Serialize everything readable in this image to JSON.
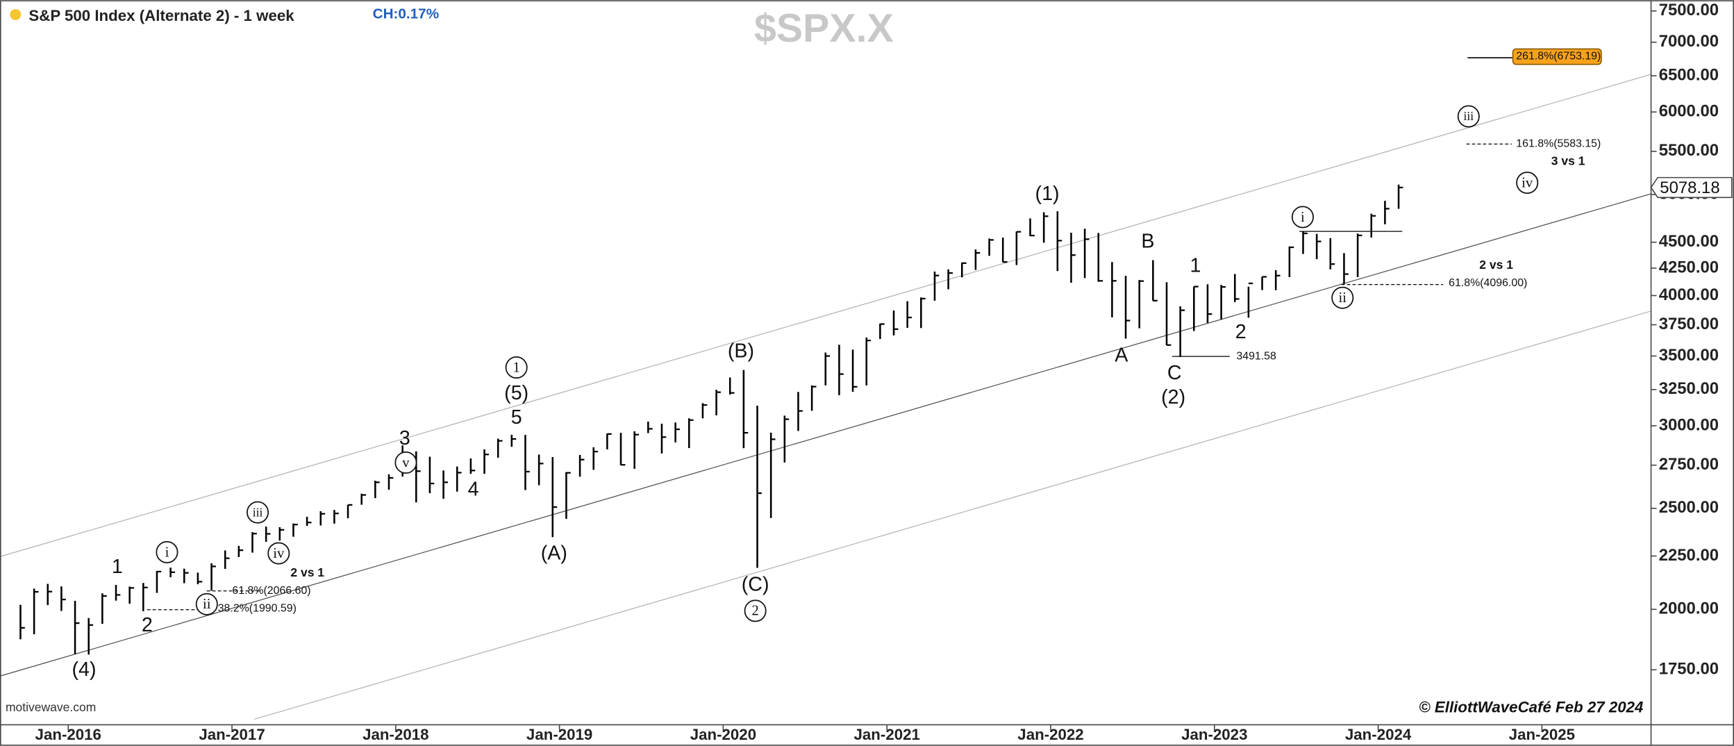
{
  "chart_data": {
    "type": "ohlc",
    "title": "S&P 500 Index (Alternate 2) - 1 week",
    "change_label": "CH:0.17%",
    "symbol": "$SPX.X",
    "watermark": "motivewave.com",
    "copyright": "© ElliottWaveCafé Feb 27 2024",
    "log_scale": true,
    "color": "#000000",
    "x": [
      "2015-09",
      "2015-10",
      "2015-11",
      "2015-12",
      "2016-01",
      "2016-02",
      "2016-03",
      "2016-04",
      "2016-05",
      "2016-06",
      "2016-07",
      "2016-08",
      "2016-09",
      "2016-10",
      "2016-11",
      "2016-12",
      "2017-01",
      "2017-02",
      "2017-03",
      "2017-04",
      "2017-05",
      "2017-06",
      "2017-07",
      "2017-08",
      "2017-09",
      "2017-10",
      "2017-11",
      "2017-12",
      "2018-01",
      "2018-02",
      "2018-03",
      "2018-04",
      "2018-05",
      "2018-06",
      "2018-07",
      "2018-08",
      "2018-09",
      "2018-10",
      "2018-11",
      "2018-12",
      "2019-01",
      "2019-02",
      "2019-03",
      "2019-04",
      "2019-05",
      "2019-06",
      "2019-07",
      "2019-08",
      "2019-09",
      "2019-10",
      "2019-11",
      "2019-12",
      "2020-01",
      "2020-02",
      "2020-03",
      "2020-04",
      "2020-05",
      "2020-06",
      "2020-07",
      "2020-08",
      "2020-09",
      "2020-10",
      "2020-11",
      "2020-12",
      "2021-01",
      "2021-02",
      "2021-03",
      "2021-04",
      "2021-05",
      "2021-06",
      "2021-07",
      "2021-08",
      "2021-09",
      "2021-10",
      "2021-11",
      "2021-12",
      "2022-01",
      "2022-02",
      "2022-03",
      "2022-04",
      "2022-05",
      "2022-06",
      "2022-07",
      "2022-08",
      "2022-09",
      "2022-10",
      "2022-11",
      "2022-12",
      "2023-01",
      "2023-02",
      "2023-03",
      "2023-04",
      "2023-05",
      "2023-06",
      "2023-07",
      "2023-08",
      "2023-09",
      "2023-10",
      "2023-11",
      "2023-12",
      "2024-01",
      "2024-02"
    ],
    "high": [
      2020,
      2094,
      2116,
      2104,
      2038,
      1962,
      2072,
      2111,
      2103,
      2120,
      2177,
      2193,
      2188,
      2169,
      2214,
      2278,
      2301,
      2372,
      2401,
      2398,
      2418,
      2454,
      2484,
      2491,
      2519,
      2582,
      2657,
      2695,
      2873,
      2835,
      2802,
      2718,
      2742,
      2791,
      2848,
      2916,
      2941,
      2940,
      2815,
      2800,
      2708,
      2813,
      2861,
      2949,
      2954,
      2964,
      3028,
      3014,
      3022,
      3050,
      3154,
      3248,
      3338,
      3394,
      3136,
      2955,
      3068,
      3233,
      3280,
      3527,
      3588,
      3550,
      3646,
      3760,
      3870,
      3950,
      3983,
      4218,
      4238,
      4302,
      4429,
      4537,
      4546,
      4608,
      4743,
      4808,
      4818,
      4595,
      4637,
      4593,
      4307,
      4178,
      4140,
      4325,
      4119,
      3906,
      4080,
      4101,
      4095,
      4195,
      4079,
      4170,
      4231,
      4458,
      4607,
      4584,
      4541,
      4393,
      4587,
      4793,
      4931,
      5111
    ],
    "low": [
      1872,
      1893,
      2019,
      1993,
      1812,
      1810,
      1937,
      2039,
      2025,
      1992,
      2074,
      2147,
      2119,
      2114,
      2084,
      2187,
      2245,
      2267,
      2322,
      2328,
      2348,
      2405,
      2407,
      2417,
      2446,
      2520,
      2557,
      2605,
      2682,
      2533,
      2585,
      2553,
      2594,
      2698,
      2698,
      2796,
      2864,
      2603,
      2631,
      2346,
      2443,
      2681,
      2722,
      2848,
      2750,
      2728,
      2952,
      2822,
      2892,
      2856,
      3050,
      3070,
      3214,
      2855,
      2192,
      2447,
      2766,
      2966,
      3101,
      3280,
      3210,
      3234,
      3280,
      3634,
      3663,
      3725,
      3723,
      3955,
      4056,
      4164,
      4233,
      4367,
      4306,
      4279,
      4560,
      4495,
      4222,
      4115,
      4157,
      4124,
      3811,
      3637,
      3721,
      3955,
      3585,
      3492,
      3699,
      3765,
      3794,
      3943,
      3809,
      4049,
      4048,
      4166,
      4385,
      4335,
      4238,
      4104,
      4167,
      4547,
      4682,
      4845
    ],
    "close": [
      1920,
      2079,
      2080,
      2044,
      1940,
      1932,
      2060,
      2065,
      2097,
      2099,
      2174,
      2171,
      2168,
      2126,
      2199,
      2239,
      2279,
      2364,
      2363,
      2384,
      2412,
      2423,
      2470,
      2472,
      2519,
      2575,
      2648,
      2674,
      2824,
      2714,
      2641,
      2648,
      2705,
      2718,
      2816,
      2902,
      2914,
      2711,
      2760,
      2507,
      2704,
      2784,
      2834,
      2946,
      2752,
      2942,
      2980,
      2926,
      2977,
      3038,
      3141,
      3231,
      3226,
      2954,
      2585,
      2912,
      3044,
      3100,
      3271,
      3500,
      3363,
      3270,
      3622,
      3756,
      3714,
      3811,
      3973,
      4181,
      4204,
      4297,
      4395,
      4523,
      4308,
      4605,
      4567,
      4766,
      4516,
      4374,
      4530,
      4132,
      4132,
      3785,
      4130,
      3955,
      3586,
      3872,
      4080,
      3840,
      4077,
      3970,
      4109,
      4169,
      4180,
      4450,
      4589,
      4508,
      4288,
      4194,
      4568,
      4770,
      4846,
      5078
    ],
    "last_price": 5078.18,
    "xlim": [
      "2015-08",
      "2025-09"
    ],
    "xticks": [
      {
        "value": "2016-01",
        "label": "Jan-2016"
      },
      {
        "value": "2017-01",
        "label": "Jan-2017"
      },
      {
        "value": "2018-01",
        "label": "Jan-2018"
      },
      {
        "value": "2019-01",
        "label": "Jan-2019"
      },
      {
        "value": "2020-01",
        "label": "Jan-2020"
      },
      {
        "value": "2021-01",
        "label": "Jan-2021"
      },
      {
        "value": "2022-01",
        "label": "Jan-2022"
      },
      {
        "value": "2023-01",
        "label": "Jan-2023"
      },
      {
        "value": "2024-01",
        "label": "Jan-2024"
      },
      {
        "value": "2025-01",
        "label": "Jan-2025"
      }
    ],
    "ylim": [
      1550,
      7680
    ],
    "yticks": [
      {
        "value": 1750,
        "label": "1750.00"
      },
      {
        "value": 2000,
        "label": "2000.00"
      },
      {
        "value": 2250,
        "label": "2250.00"
      },
      {
        "value": 2500,
        "label": "2500.00"
      },
      {
        "value": 2750,
        "label": "2750.00"
      },
      {
        "value": 3000,
        "label": "3000.00"
      },
      {
        "value": 3250,
        "label": "3250.00"
      },
      {
        "value": 3500,
        "label": "3500.00"
      },
      {
        "value": 3750,
        "label": "3750.00"
      },
      {
        "value": 4000,
        "label": "4000.00"
      },
      {
        "value": 4250,
        "label": "4250.00"
      },
      {
        "value": 4500,
        "label": "4500.00"
      },
      {
        "value": 5000,
        "label": "5000.00"
      },
      {
        "value": 5500,
        "label": "5500.00"
      },
      {
        "value": 6000,
        "label": "6000.00"
      },
      {
        "value": 6500,
        "label": "6500.00"
      },
      {
        "value": 7000,
        "label": "7000.00"
      },
      {
        "value": 7500,
        "label": "7500.00"
      }
    ],
    "annotations": [
      {
        "text": "(4)",
        "style": "wave"
      },
      {
        "text": "1",
        "style": "wave"
      },
      {
        "text": "2",
        "style": "wave"
      },
      {
        "text": "i",
        "style": "circled"
      },
      {
        "text": "ii",
        "style": "circled"
      },
      {
        "text": "iii",
        "style": "circled"
      },
      {
        "text": "iv",
        "style": "circled"
      },
      {
        "text": "61.8%(2066.60)",
        "style": "fib"
      },
      {
        "text": "38.2%(1990.59)",
        "style": "fib"
      },
      {
        "text": "2 vs 1",
        "style": "note"
      },
      {
        "text": "3",
        "style": "wave"
      },
      {
        "text": "v",
        "style": "circled"
      },
      {
        "text": "4",
        "style": "wave"
      },
      {
        "text": "1",
        "style": "circled"
      },
      {
        "text": "(5)",
        "style": "wave"
      },
      {
        "text": "5",
        "style": "wave"
      },
      {
        "text": "(A)",
        "style": "wave"
      },
      {
        "text": "(B)",
        "style": "wave"
      },
      {
        "text": "(C)",
        "style": "wave"
      },
      {
        "text": "2",
        "style": "circled"
      },
      {
        "text": "(1)",
        "style": "wave"
      },
      {
        "text": "B",
        "style": "wave"
      },
      {
        "text": "A",
        "style": "wave"
      },
      {
        "text": "C",
        "style": "wave"
      },
      {
        "text": "(2)",
        "style": "wave"
      },
      {
        "text": "1",
        "style": "wave"
      },
      {
        "text": "2",
        "style": "wave"
      },
      {
        "text": "3491.58",
        "style": "fib"
      },
      {
        "text": "i",
        "style": "circled"
      },
      {
        "text": "ii",
        "style": "circled"
      },
      {
        "text": "61.8%(4096.00)",
        "style": "fib"
      },
      {
        "text": "2 vs 1",
        "style": "note"
      },
      {
        "text": "iii",
        "style": "circled"
      },
      {
        "text": "161.8%(5583.15)",
        "style": "fib"
      },
      {
        "text": "3 vs 1",
        "style": "note"
      },
      {
        "text": "iv",
        "style": "circled"
      },
      {
        "text": "261.8%(6753.19)",
        "style": "target"
      }
    ]
  }
}
